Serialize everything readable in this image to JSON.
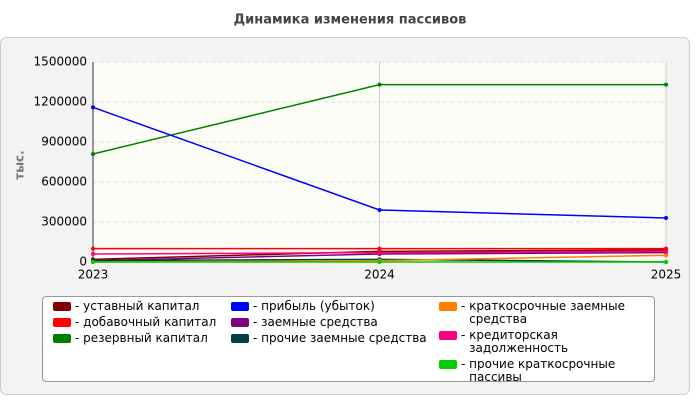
{
  "chart_data": {
    "type": "line",
    "title": "Динамика изменения пассивов",
    "y_label": "тыс.",
    "categories": [
      "2023",
      "2024",
      "2025"
    ],
    "ylim": [
      0,
      1500000
    ],
    "yticks": [
      0,
      300000,
      600000,
      900000,
      1200000,
      1500000
    ],
    "grid": true,
    "series": [
      {
        "name": "уставный капитал",
        "color": "#800000",
        "values": [
          20000,
          80000,
          90000
        ]
      },
      {
        "name": "добавочный капитал",
        "color": "#ff0000",
        "values": [
          100000,
          100000,
          100000
        ]
      },
      {
        "name": "резервный капитал",
        "color": "#008000",
        "values": [
          810000,
          1330000,
          1330000
        ]
      },
      {
        "name": "прибыль (убыток)",
        "color": "#0000ff",
        "values": [
          1160000,
          390000,
          330000
        ]
      },
      {
        "name": "заемные средства",
        "color": "#800080",
        "values": [
          10000,
          60000,
          70000
        ]
      },
      {
        "name": "прочие заемные средства",
        "color": "#004040",
        "values": [
          10000,
          20000,
          0
        ]
      },
      {
        "name": "краткосрочные заемные средства",
        "color": "#ff8000",
        "values": [
          0,
          10000,
          50000
        ]
      },
      {
        "name": "кредиторская задолженность",
        "color": "#ff0080",
        "values": [
          60000,
          70000,
          80000
        ]
      },
      {
        "name": "прочие краткосрочные пассивы",
        "color": "#00cc00",
        "values": [
          0,
          0,
          0
        ]
      }
    ]
  }
}
